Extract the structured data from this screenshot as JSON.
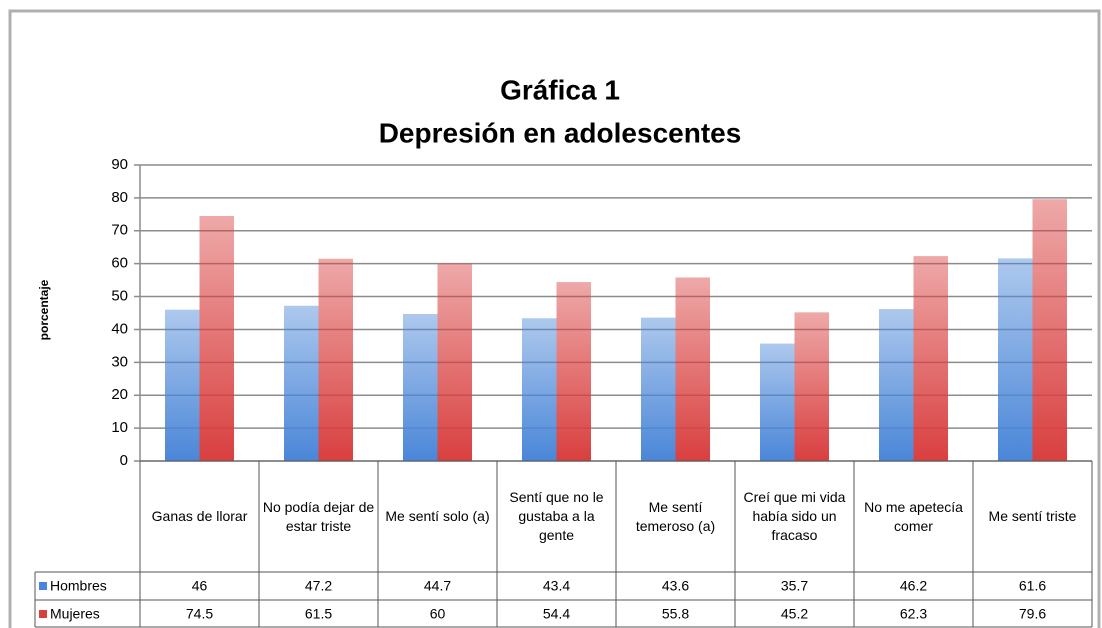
{
  "chart_data": {
    "type": "bar",
    "title": "Gráfica 1",
    "subtitle": "Depresión en adolescentes",
    "y_label": "porcentaje",
    "categories": [
      "Ganas de llorar",
      "No podía dejar de estar triste",
      "Me sentí solo (a)",
      "Sentí que no le gustaba a la gente",
      "Me sentí temeroso (a)",
      "Creí que mi vida había sido un fracaso",
      "No me apetecía comer",
      "Me sentí triste"
    ],
    "series": [
      {
        "name": "Hombres",
        "color": "#4a86d8",
        "values": [
          46,
          47.2,
          44.7,
          43.4,
          43.6,
          35.7,
          46.2,
          61.6
        ]
      },
      {
        "name": "Mujeres",
        "color": "#d93f3f",
        "values": [
          74.5,
          61.5,
          60,
          54.4,
          55.8,
          45.2,
          62.3,
          79.6
        ]
      }
    ],
    "ylim": [
      0,
      90
    ],
    "yticks": [
      0,
      10,
      20,
      30,
      40,
      50,
      60,
      70,
      80,
      90
    ],
    "grid": true
  }
}
